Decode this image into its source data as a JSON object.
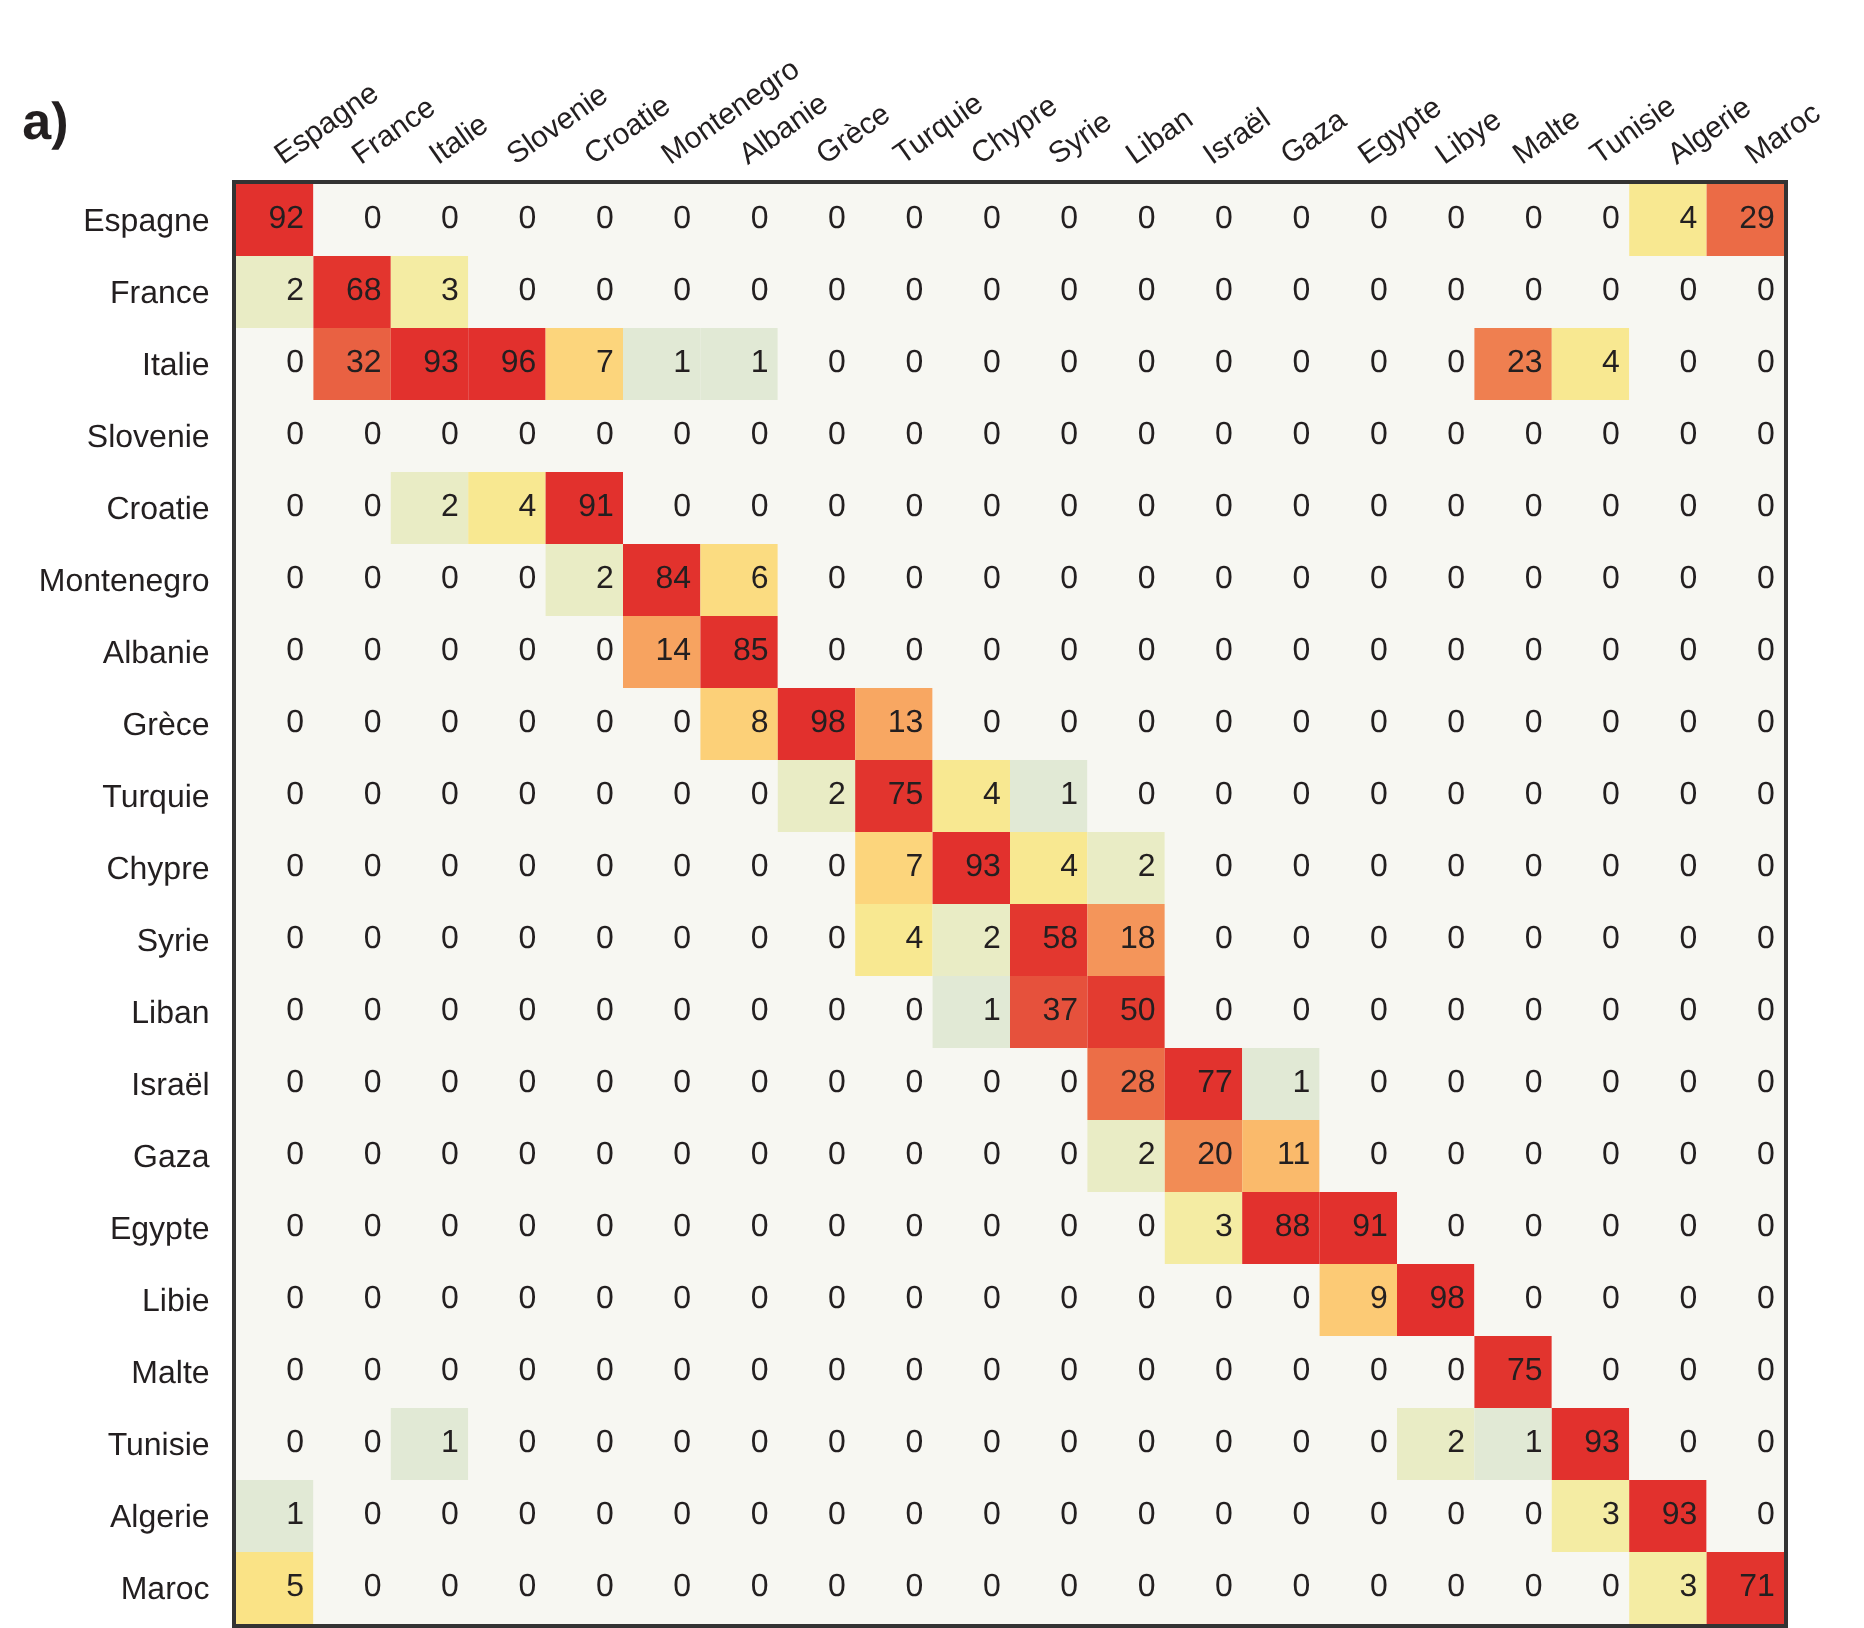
{
  "chart_data": {
    "type": "heatmap",
    "title": "a)",
    "categories": [
      "Espagne",
      "France",
      "Italie",
      "Slovenie",
      "Croatie",
      "Montenegro",
      "Albanie",
      "Grèce",
      "Turquie",
      "Chypre",
      "Syrie",
      "Liban",
      "Israël",
      "Gaza",
      "Egypte",
      "Libye",
      "Malte",
      "Tunisie",
      "Algerie",
      "Maroc"
    ],
    "y_categories": [
      "Espagne",
      "France",
      "Italie",
      "Slovenie",
      "Croatie",
      "Montenegro",
      "Albanie",
      "Grèce",
      "Turquie",
      "Chypre",
      "Syrie",
      "Liban",
      "Israël",
      "Gaza",
      "Egypte",
      "Libie",
      "Malte",
      "Tunisie",
      "Algerie",
      "Maroc"
    ],
    "cells": [
      [
        92,
        0,
        0,
        0,
        0,
        0,
        0,
        0,
        0,
        0,
        0,
        0,
        0,
        0,
        0,
        0,
        0,
        0,
        4,
        29
      ],
      [
        2,
        68,
        3,
        0,
        0,
        0,
        0,
        0,
        0,
        0,
        0,
        0,
        0,
        0,
        0,
        0,
        0,
        0,
        0,
        0
      ],
      [
        0,
        32,
        93,
        96,
        7,
        1,
        1,
        0,
        0,
        0,
        0,
        0,
        0,
        0,
        0,
        0,
        23,
        4,
        0,
        0
      ],
      [
        0,
        0,
        0,
        0,
        0,
        0,
        0,
        0,
        0,
        0,
        0,
        0,
        0,
        0,
        0,
        0,
        0,
        0,
        0,
        0
      ],
      [
        0,
        0,
        2,
        4,
        91,
        0,
        0,
        0,
        0,
        0,
        0,
        0,
        0,
        0,
        0,
        0,
        0,
        0,
        0,
        0
      ],
      [
        0,
        0,
        0,
        0,
        2,
        84,
        6,
        0,
        0,
        0,
        0,
        0,
        0,
        0,
        0,
        0,
        0,
        0,
        0,
        0
      ],
      [
        0,
        0,
        0,
        0,
        0,
        14,
        85,
        0,
        0,
        0,
        0,
        0,
        0,
        0,
        0,
        0,
        0,
        0,
        0,
        0
      ],
      [
        0,
        0,
        0,
        0,
        0,
        0,
        8,
        98,
        13,
        0,
        0,
        0,
        0,
        0,
        0,
        0,
        0,
        0,
        0,
        0
      ],
      [
        0,
        0,
        0,
        0,
        0,
        0,
        0,
        2,
        75,
        4,
        1,
        0,
        0,
        0,
        0,
        0,
        0,
        0,
        0,
        0
      ],
      [
        0,
        0,
        0,
        0,
        0,
        0,
        0,
        0,
        7,
        93,
        4,
        2,
        0,
        0,
        0,
        0,
        0,
        0,
        0,
        0
      ],
      [
        0,
        0,
        0,
        0,
        0,
        0,
        0,
        0,
        4,
        2,
        58,
        18,
        0,
        0,
        0,
        0,
        0,
        0,
        0,
        0
      ],
      [
        0,
        0,
        0,
        0,
        0,
        0,
        0,
        0,
        0,
        1,
        37,
        50,
        0,
        0,
        0,
        0,
        0,
        0,
        0,
        0
      ],
      [
        0,
        0,
        0,
        0,
        0,
        0,
        0,
        0,
        0,
        0,
        0,
        28,
        77,
        1,
        0,
        0,
        0,
        0,
        0,
        0
      ],
      [
        0,
        0,
        0,
        0,
        0,
        0,
        0,
        0,
        0,
        0,
        0,
        2,
        20,
        11,
        0,
        0,
        0,
        0,
        0,
        0
      ],
      [
        0,
        0,
        0,
        0,
        0,
        0,
        0,
        0,
        0,
        0,
        0,
        0,
        3,
        88,
        91,
        0,
        0,
        0,
        0,
        0
      ],
      [
        0,
        0,
        0,
        0,
        0,
        0,
        0,
        0,
        0,
        0,
        0,
        0,
        0,
        0,
        9,
        98,
        0,
        0,
        0,
        0
      ],
      [
        0,
        0,
        0,
        0,
        0,
        0,
        0,
        0,
        0,
        0,
        0,
        0,
        0,
        0,
        0,
        0,
        75,
        0,
        0,
        0
      ],
      [
        0,
        0,
        1,
        0,
        0,
        0,
        0,
        0,
        0,
        0,
        0,
        0,
        0,
        0,
        0,
        2,
        1,
        93,
        0,
        0
      ],
      [
        1,
        0,
        0,
        0,
        0,
        0,
        0,
        0,
        0,
        0,
        0,
        0,
        0,
        0,
        0,
        0,
        0,
        3,
        93,
        0
      ],
      [
        5,
        0,
        0,
        0,
        0,
        0,
        0,
        0,
        0,
        0,
        0,
        0,
        0,
        0,
        0,
        0,
        0,
        0,
        3,
        71
      ]
    ],
    "data_labels": true
  }
}
